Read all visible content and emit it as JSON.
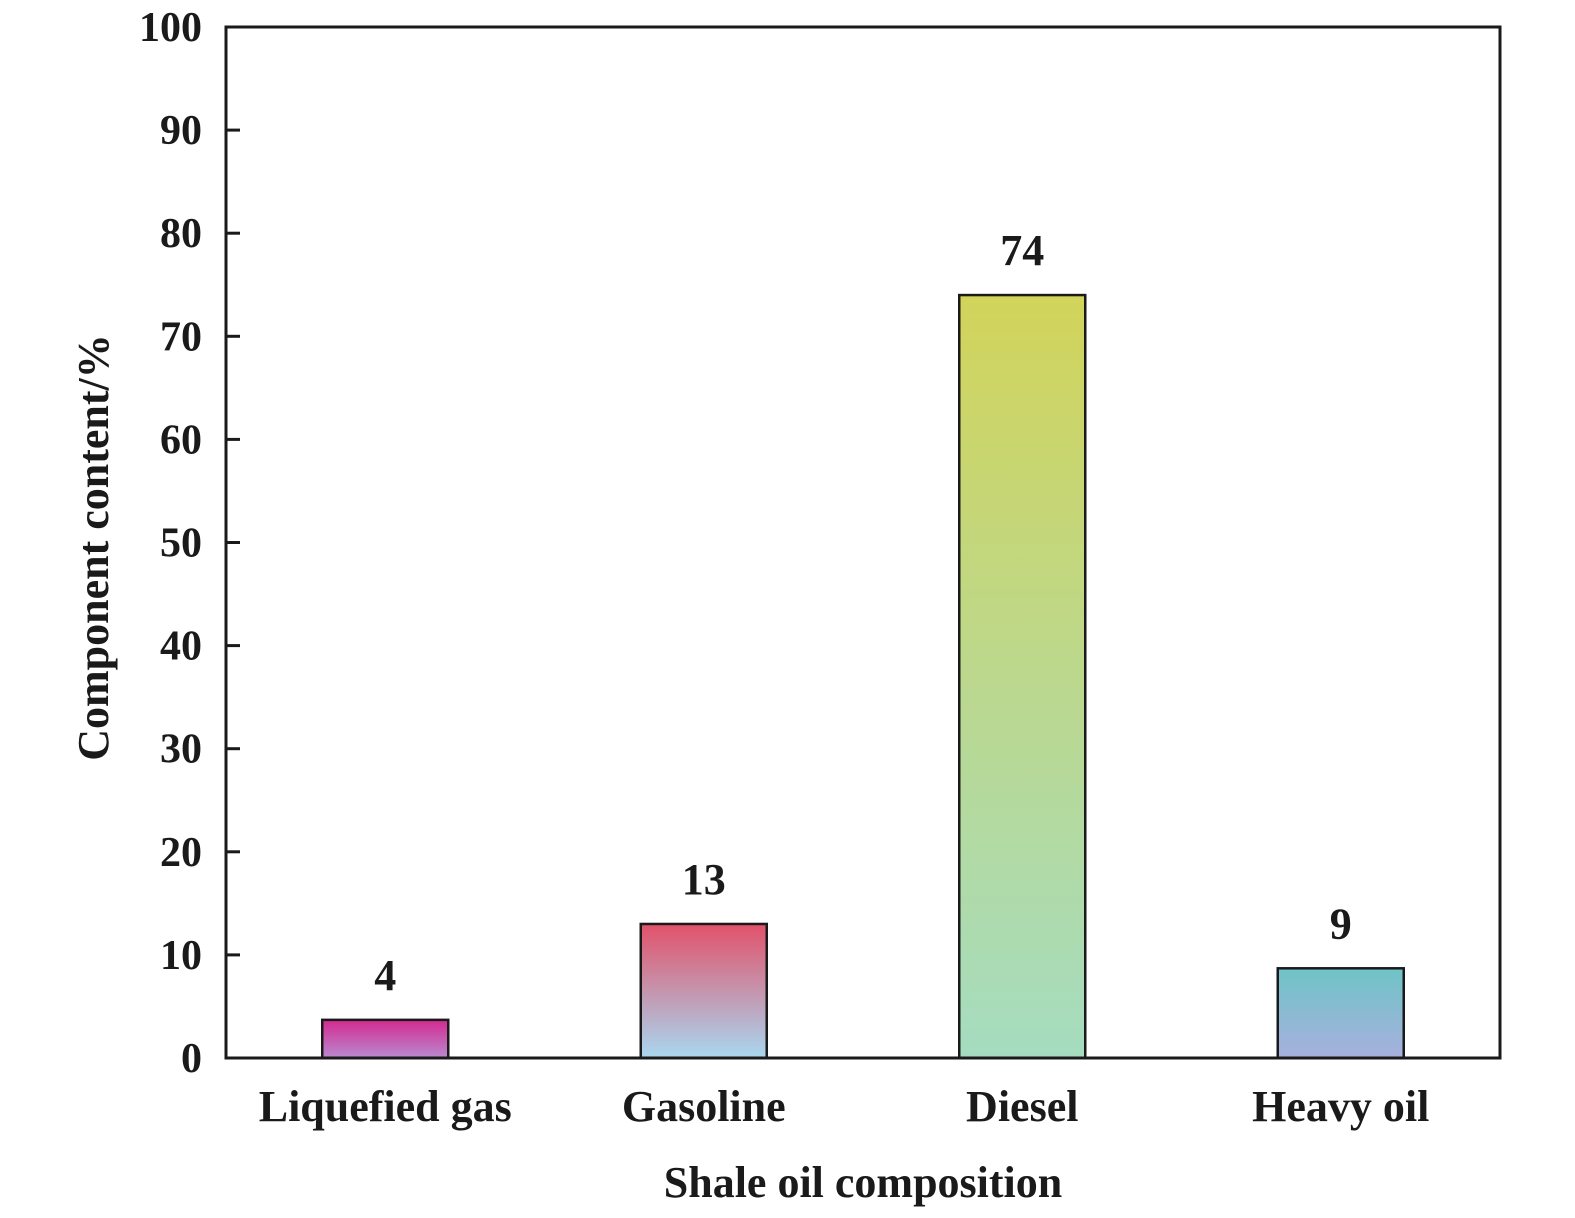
{
  "chart_data": {
    "type": "bar",
    "title": "",
    "xlabel": "Shale oil composition",
    "ylabel": "Component content/%",
    "ylim": [
      0,
      100
    ],
    "yticks": [
      0,
      10,
      20,
      30,
      40,
      50,
      60,
      70,
      80,
      90,
      100
    ],
    "categories": [
      "Liquefied gas",
      "Gasoline",
      "Diesel",
      "Heavy oil"
    ],
    "values": [
      3.7,
      13,
      74,
      8.7
    ],
    "data_labels": [
      "4",
      "13",
      "74",
      "9"
    ],
    "bar_colors": [
      [
        "#d42a8f",
        "#b98ad0"
      ],
      [
        "#e2516a",
        "#a9d7f0"
      ],
      [
        "#d2d45a",
        "#a5dcc0"
      ],
      [
        "#6ec4c7",
        "#a8b0de"
      ]
    ],
    "grid": false,
    "legend": "none"
  }
}
